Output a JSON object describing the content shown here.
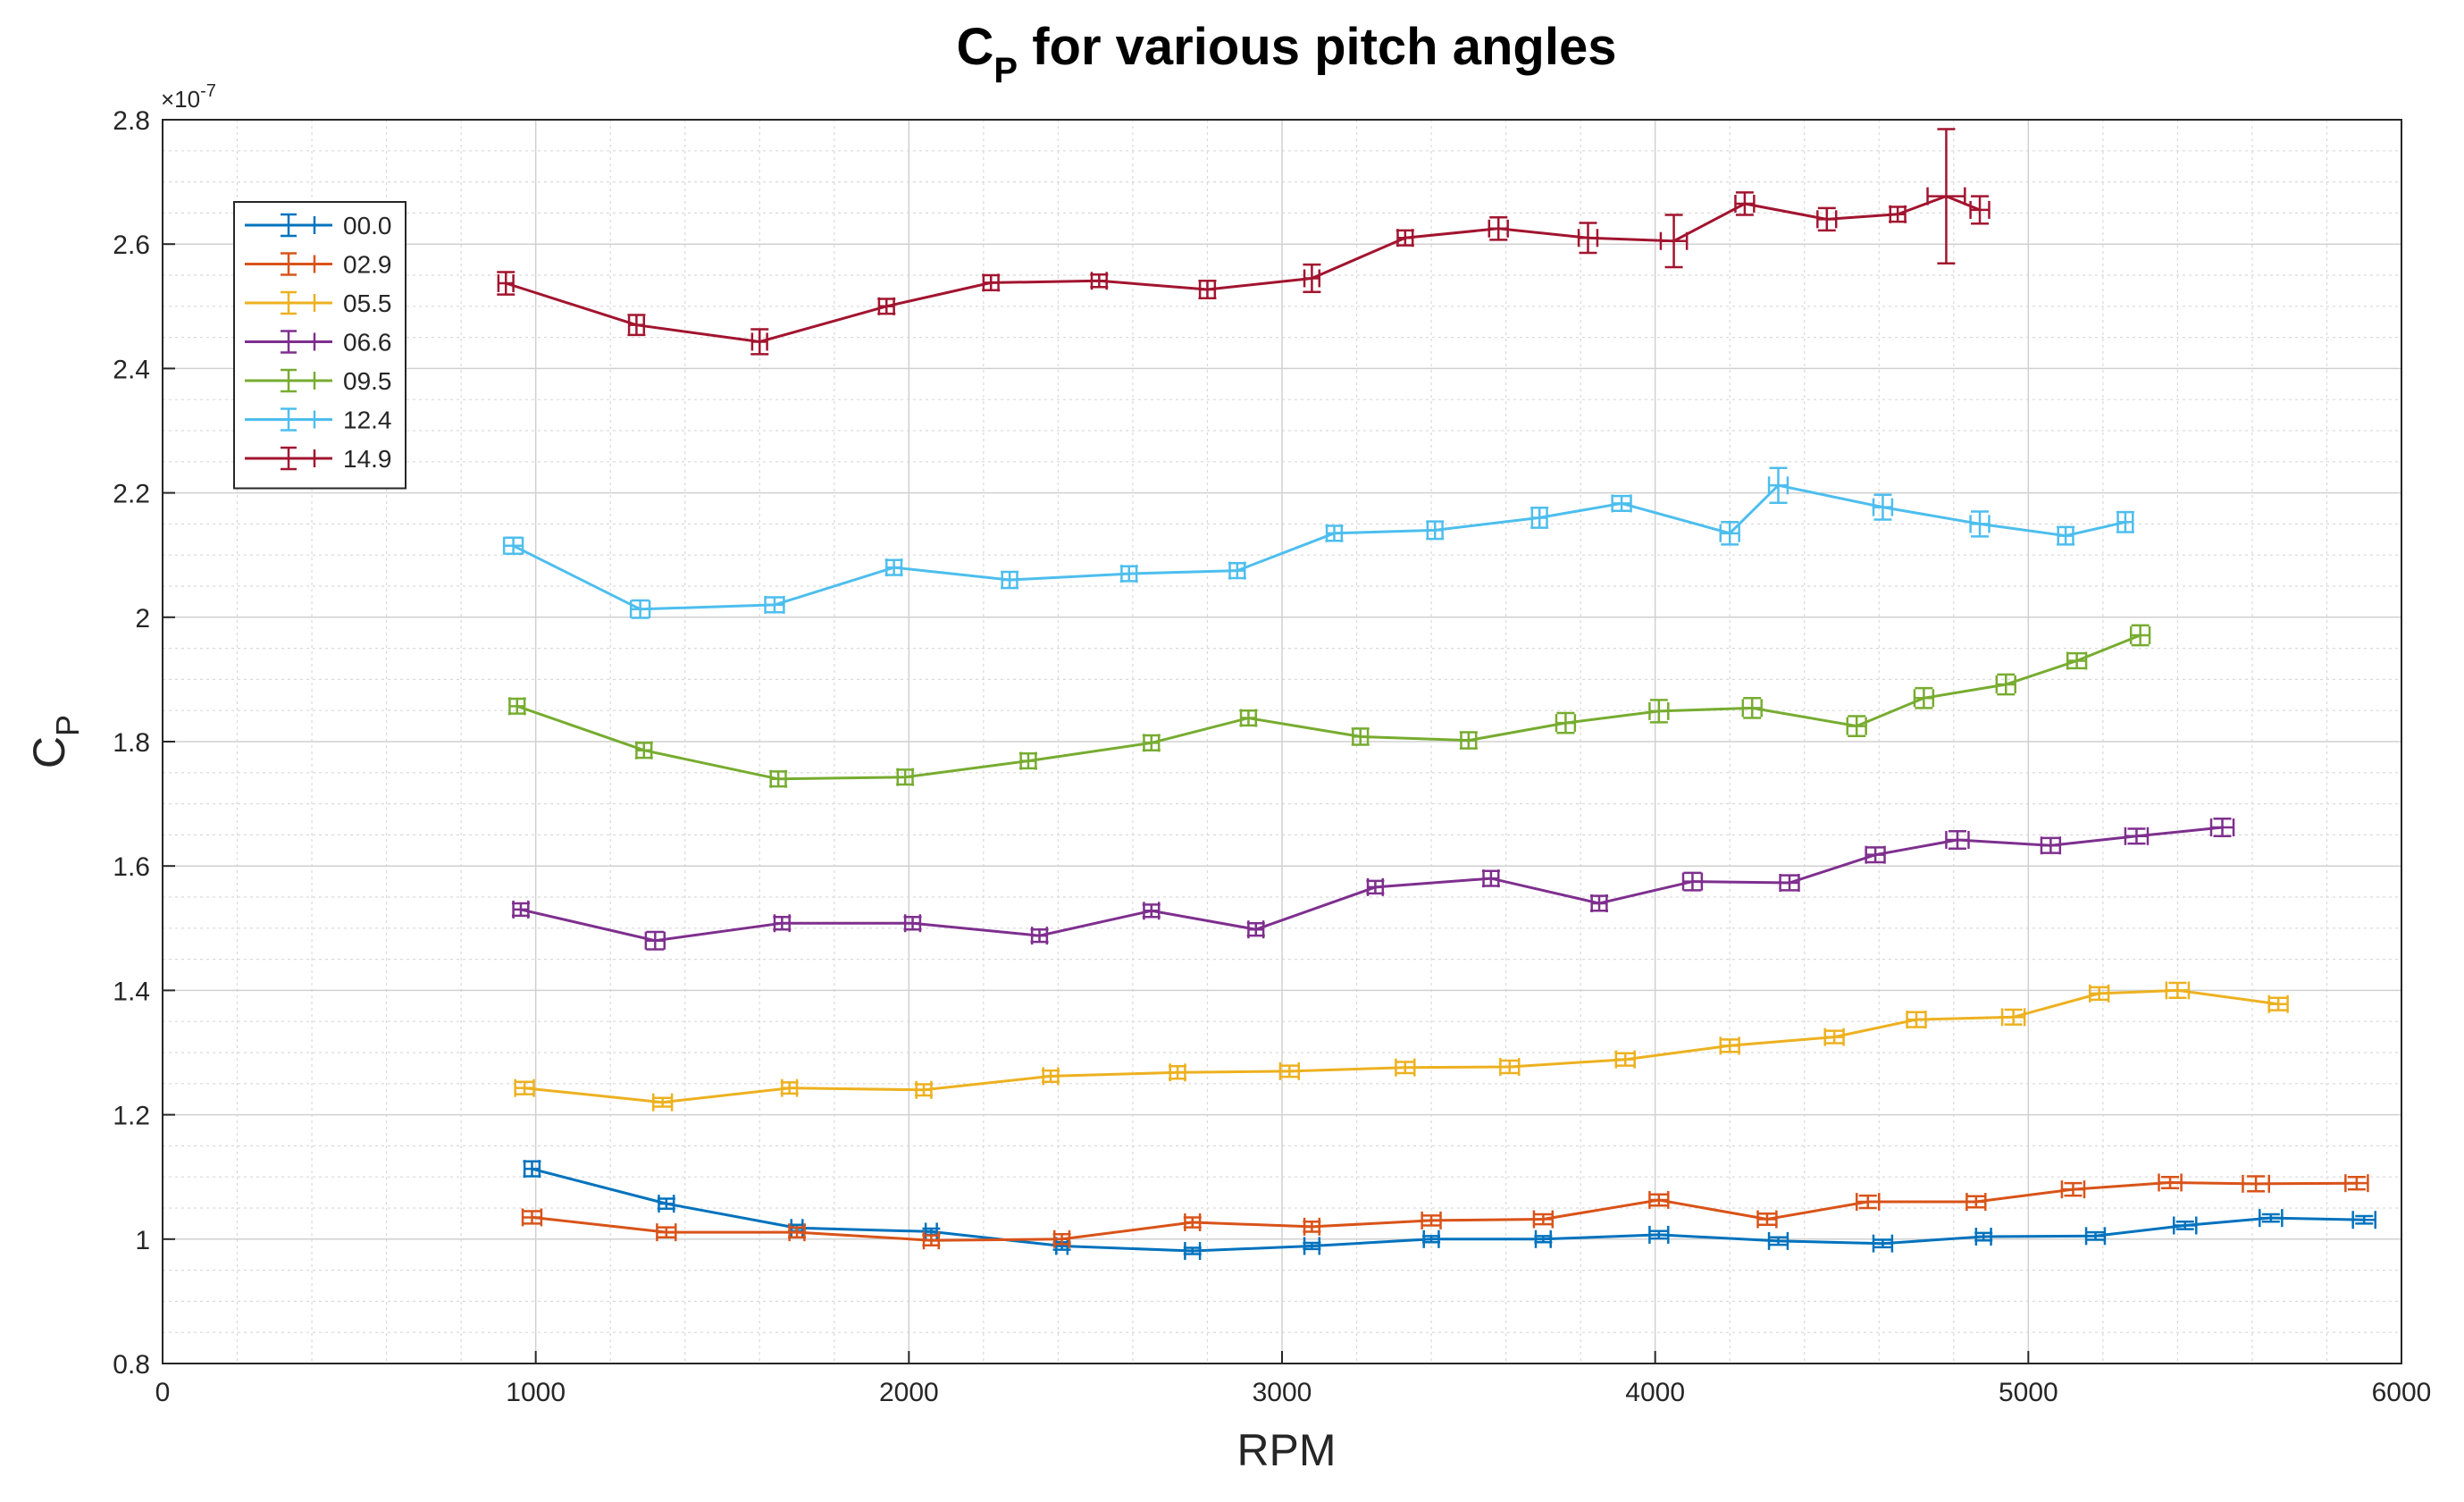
{
  "chart_data": {
    "type": "line",
    "title_main": "C",
    "title_sub": "P",
    "title_rest": " for various pitch angles",
    "xlabel": "RPM",
    "ylabel_main": "C",
    "ylabel_sub": "P",
    "y_exponent_base": "×10",
    "y_exponent_power": "-7",
    "xlim": [
      0,
      6000
    ],
    "ylim": [
      0.8,
      2.8
    ],
    "x_ticks": [
      0,
      1000,
      2000,
      3000,
      4000,
      5000,
      6000
    ],
    "x_tick_labels": [
      "0",
      "1000",
      "2000",
      "3000",
      "4000",
      "5000",
      "6000"
    ],
    "y_ticks": [
      0.8,
      1.0,
      1.2,
      1.4,
      1.6,
      1.8,
      2.0,
      2.2,
      2.4,
      2.6,
      2.8
    ],
    "y_tick_labels": [
      "0.8",
      "1",
      "1.2",
      "1.4",
      "1.6",
      "1.8",
      "2",
      "2.2",
      "2.4",
      "2.6",
      "2.8"
    ],
    "grid": true,
    "minor_grid": true,
    "legend_position": "upper-left",
    "series": [
      {
        "name": "00.0",
        "color": "#0072bd",
        "x": [
          990,
          1350,
          1700,
          2060,
          2410,
          2760,
          3080,
          3400,
          3700,
          4010,
          4330,
          4610,
          4880,
          5180,
          5420,
          5650,
          5900
        ],
        "y": [
          1.113,
          1.057,
          1.018,
          1.012,
          0.989,
          0.981,
          0.989,
          1.0,
          1.0,
          1.007,
          0.997,
          0.993,
          1.004,
          1.005,
          1.022,
          1.034,
          1.031
        ],
        "xerr": [
          20,
          20,
          15,
          15,
          15,
          20,
          20,
          20,
          20,
          25,
          25,
          25,
          20,
          25,
          30,
          30,
          30
        ],
        "yerr": [
          0.012,
          0.008,
          0.005,
          0.005,
          0.006,
          0.005,
          0.005,
          0.005,
          0.005,
          0.006,
          0.006,
          0.006,
          0.006,
          0.006,
          0.006,
          0.006,
          0.006
        ]
      },
      {
        "name": "02.9",
        "color": "#d95319",
        "x": [
          990,
          1350,
          1700,
          2060,
          2410,
          2760,
          3080,
          3400,
          3700,
          4010,
          4300,
          4570,
          4860,
          5120,
          5380,
          5610,
          5880
        ],
        "y": [
          1.035,
          1.011,
          1.011,
          0.998,
          1.0,
          1.027,
          1.02,
          1.03,
          1.032,
          1.063,
          1.032,
          1.06,
          1.06,
          1.08,
          1.091,
          1.089,
          1.09
        ],
        "xerr": [
          25,
          25,
          20,
          20,
          20,
          20,
          20,
          25,
          25,
          25,
          25,
          30,
          25,
          30,
          30,
          35,
          30
        ],
        "yerr": [
          0.01,
          0.008,
          0.008,
          0.008,
          0.008,
          0.008,
          0.008,
          0.008,
          0.008,
          0.009,
          0.009,
          0.01,
          0.009,
          0.01,
          0.009,
          0.012,
          0.01
        ]
      },
      {
        "name": "05.5",
        "color": "#edb120",
        "x": [
          970,
          1340,
          1680,
          2040,
          2380,
          2720,
          3020,
          3330,
          3610,
          3920,
          4200,
          4480,
          4700,
          4960,
          5190,
          5400,
          5670
        ],
        "y": [
          1.243,
          1.22,
          1.243,
          1.24,
          1.262,
          1.268,
          1.27,
          1.276,
          1.277,
          1.289,
          1.311,
          1.325,
          1.353,
          1.357,
          1.395,
          1.4,
          1.378
        ],
        "xerr": [
          25,
          25,
          20,
          20,
          20,
          20,
          25,
          25,
          25,
          25,
          25,
          25,
          25,
          30,
          25,
          30,
          25
        ],
        "yerr": [
          0.01,
          0.007,
          0.009,
          0.009,
          0.009,
          0.01,
          0.009,
          0.009,
          0.01,
          0.01,
          0.01,
          0.01,
          0.012,
          0.012,
          0.01,
          0.012,
          0.01
        ]
      },
      {
        "name": "06.6",
        "color": "#7e2f8e",
        "x": [
          960,
          1320,
          1660,
          2010,
          2350,
          2650,
          2930,
          3250,
          3560,
          3850,
          4100,
          4360,
          4590,
          4810,
          5060,
          5290,
          5520
        ],
        "y": [
          1.53,
          1.48,
          1.508,
          1.508,
          1.488,
          1.528,
          1.498,
          1.566,
          1.58,
          1.54,
          1.575,
          1.573,
          1.618,
          1.642,
          1.633,
          1.648,
          1.662
        ],
        "xerr": [
          20,
          25,
          20,
          20,
          20,
          20,
          20,
          20,
          20,
          20,
          25,
          25,
          25,
          30,
          25,
          30,
          30
        ],
        "yerr": [
          0.01,
          0.014,
          0.01,
          0.01,
          0.01,
          0.01,
          0.01,
          0.01,
          0.012,
          0.012,
          0.014,
          0.012,
          0.012,
          0.014,
          0.012,
          0.012,
          0.014
        ]
      },
      {
        "name": "09.5",
        "color": "#77ac30",
        "x": [
          950,
          1290,
          1650,
          1990,
          2320,
          2650,
          2910,
          3210,
          3500,
          3760,
          4010,
          4260,
          4540,
          4720,
          4940,
          5130,
          5300
        ],
        "y": [
          1.857,
          1.786,
          1.74,
          1.743,
          1.769,
          1.798,
          1.838,
          1.808,
          1.802,
          1.83,
          1.849,
          1.854,
          1.825,
          1.87,
          1.892,
          1.93,
          1.971
        ],
        "xerr": [
          20,
          20,
          20,
          20,
          20,
          20,
          20,
          20,
          20,
          25,
          25,
          25,
          25,
          25,
          25,
          25,
          25
        ],
        "yerr": [
          0.012,
          0.012,
          0.012,
          0.012,
          0.012,
          0.012,
          0.012,
          0.013,
          0.013,
          0.016,
          0.018,
          0.016,
          0.016,
          0.016,
          0.016,
          0.012,
          0.016
        ]
      },
      {
        "name": "12.4",
        "color": "#4dbeee",
        "x": [
          940,
          1280,
          1640,
          1960,
          2270,
          2590,
          2880,
          3140,
          3410,
          3690,
          3910,
          4200,
          4330,
          4610,
          4870,
          5100,
          5260
        ],
        "y": [
          2.115,
          2.013,
          2.02,
          2.08,
          2.06,
          2.07,
          2.075,
          2.135,
          2.14,
          2.16,
          2.183,
          2.135,
          2.212,
          2.177,
          2.15,
          2.131,
          2.153
        ],
        "xerr": [
          25,
          25,
          25,
          20,
          20,
          20,
          20,
          20,
          20,
          20,
          25,
          25,
          25,
          25,
          25,
          20,
          20
        ],
        "yerr": [
          0.013,
          0.014,
          0.012,
          0.012,
          0.013,
          0.012,
          0.012,
          0.012,
          0.014,
          0.016,
          0.012,
          0.018,
          0.028,
          0.02,
          0.02,
          0.014,
          0.016
        ]
      },
      {
        "name": "14.9",
        "color": "#a2142f",
        "x": [
          920,
          1270,
          1600,
          1940,
          2220,
          2510,
          2800,
          3080,
          3330,
          3580,
          3820,
          4050,
          4240,
          4460,
          4650,
          4780,
          4870
        ],
        "y": [
          2.537,
          2.47,
          2.443,
          2.5,
          2.538,
          2.541,
          2.527,
          2.545,
          2.61,
          2.625,
          2.61,
          2.605,
          2.665,
          2.64,
          2.648,
          2.677,
          2.655
        ],
        "xerr": [
          20,
          20,
          20,
          20,
          20,
          20,
          20,
          20,
          20,
          25,
          25,
          35,
          25,
          25,
          20,
          50,
          25
        ],
        "yerr": [
          0.018,
          0.016,
          0.02,
          0.012,
          0.012,
          0.01,
          0.014,
          0.022,
          0.012,
          0.018,
          0.024,
          0.042,
          0.018,
          0.018,
          0.012,
          0.108,
          0.022
        ]
      }
    ]
  }
}
